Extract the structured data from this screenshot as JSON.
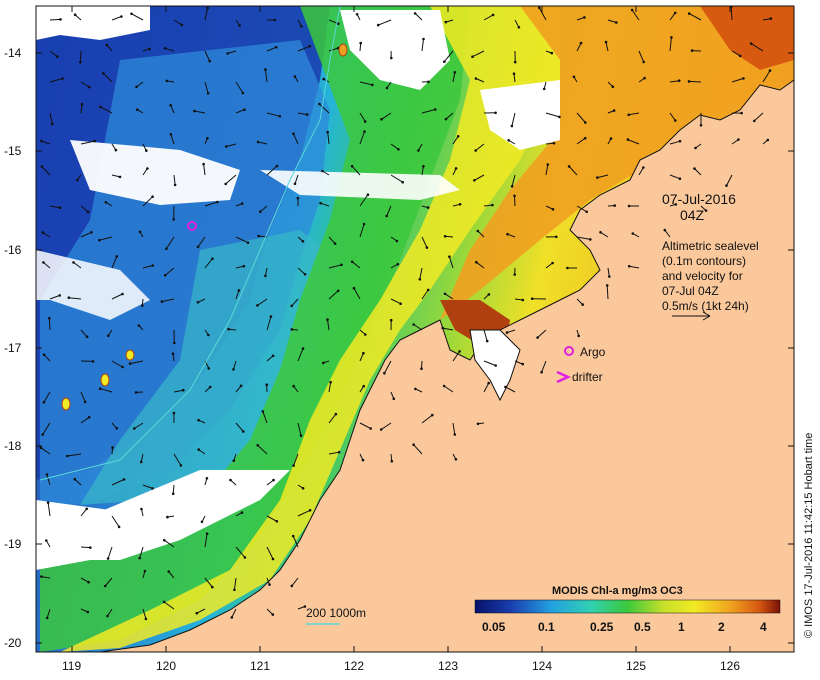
{
  "map": {
    "lat_labels": [
      "-14",
      "-15",
      "-16",
      "-17",
      "-18",
      "-19",
      "-20"
    ],
    "lon_labels": [
      "119",
      "120",
      "121",
      "122",
      "123",
      "124",
      "125",
      "126"
    ],
    "date_line1": "07-Jul-2016",
    "date_line2": "04Z",
    "alt_lines": [
      "Altimetric sealevel",
      "(0.1m contours)",
      "and velocity for",
      "07-Jul 04Z",
      "0.5m/s (1kt 24h)"
    ],
    "argo_label": "Argo",
    "drifter_label": "drifter",
    "depth_label": "200  1000m",
    "colorbar_title": "MODIS Chl-a mg/m3 OC3",
    "colorbar_ticks": [
      "0.05",
      "0.1",
      "0.25",
      "0.5",
      "1",
      "2",
      "4"
    ],
    "credit": "© IMOS 17-Jul-2016 11:42:15 Hobart time",
    "colors": {
      "land": "#fbc89b",
      "low_chl": "#1a3fb0",
      "mid_chl": "#23b4e0",
      "green_chl": "#3cc83c",
      "yellow_chl": "#f2ea24",
      "orange_chl": "#f0a020",
      "high_chl": "#b04010",
      "argo": "#e020e0",
      "depth_contour": "#5ad8d8"
    }
  }
}
